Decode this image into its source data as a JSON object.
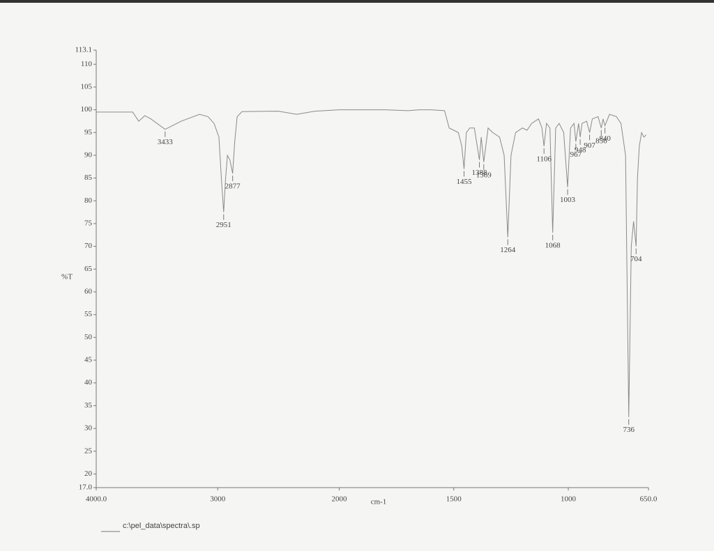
{
  "chart_data": {
    "type": "line",
    "color": "#8a8a8a",
    "ylabel": "%T",
    "xlabel": "cm-1",
    "footer": "c:\\pel_data\\spectra\\.sp",
    "xlim": [
      4000,
      650
    ],
    "ylim": [
      17,
      113.1
    ],
    "xticks": [
      {
        "value": 4000,
        "label": "4000.0"
      },
      3000,
      2000,
      1500,
      1000,
      {
        "value": 650,
        "label": "650.0"
      }
    ],
    "yticks": [
      {
        "value": 17,
        "label": "17.0"
      },
      20,
      25,
      30,
      35,
      40,
      45,
      50,
      55,
      60,
      65,
      70,
      75,
      80,
      85,
      90,
      95,
      100,
      105,
      110,
      113.1
    ],
    "x": [
      4000,
      3700,
      3650,
      3600,
      3550,
      3433,
      3300,
      3150,
      3080,
      3030,
      2990,
      2970,
      2951,
      2935,
      2920,
      2900,
      2877,
      2860,
      2840,
      2800,
      2500,
      2350,
      2200,
      2000,
      1800,
      1700,
      1650,
      1600,
      1540,
      1520,
      1480,
      1465,
      1455,
      1445,
      1430,
      1410,
      1388,
      1380,
      1369,
      1350,
      1330,
      1300,
      1280,
      1264,
      1250,
      1230,
      1200,
      1180,
      1160,
      1130,
      1115,
      1106,
      1095,
      1080,
      1068,
      1055,
      1040,
      1020,
      1003,
      990,
      975,
      967,
      955,
      948,
      940,
      920,
      907,
      895,
      870,
      856,
      848,
      840,
      820,
      790,
      770,
      750,
      736,
      725,
      715,
      704,
      698,
      690,
      680,
      670,
      660
    ],
    "values": [
      99.5,
      99.5,
      97.5,
      98.7,
      98,
      95.7,
      97.5,
      99,
      98.5,
      97,
      94,
      85,
      77.5,
      85,
      90,
      89,
      86,
      93,
      98.5,
      99.6,
      99.7,
      99,
      99.7,
      100,
      100,
      99.8,
      100,
      100,
      99.8,
      96,
      95,
      92,
      87,
      95,
      96,
      96,
      89,
      94,
      88.5,
      96,
      95,
      94,
      90,
      72,
      90,
      95,
      96,
      95.5,
      97,
      98,
      96,
      92,
      97,
      96,
      73,
      96,
      97,
      95,
      83,
      96,
      97,
      93,
      97,
      94,
      97,
      97.5,
      95,
      98,
      98.5,
      96,
      98,
      96.5,
      99,
      98.5,
      97,
      90,
      32.5,
      70,
      75.5,
      70,
      85,
      92,
      95,
      94,
      94.5
    ],
    "peaks": [
      {
        "x": 3433,
        "y": 95.7
      },
      {
        "x": 2951,
        "y": 77.5
      },
      {
        "x": 2877,
        "y": 86
      },
      {
        "x": 1455,
        "y": 87
      },
      {
        "x": 1388,
        "y": 89
      },
      {
        "x": 1369,
        "y": 88.5
      },
      {
        "x": 1264,
        "y": 72
      },
      {
        "x": 1106,
        "y": 92
      },
      {
        "x": 1068,
        "y": 73
      },
      {
        "x": 1003,
        "y": 83
      },
      {
        "x": 967,
        "y": 93
      },
      {
        "x": 948,
        "y": 94
      },
      {
        "x": 907,
        "y": 95
      },
      {
        "x": 856,
        "y": 96
      },
      {
        "x": 840,
        "y": 96.5
      },
      {
        "x": 736,
        "y": 32.5
      },
      {
        "x": 704,
        "y": 70
      }
    ]
  }
}
